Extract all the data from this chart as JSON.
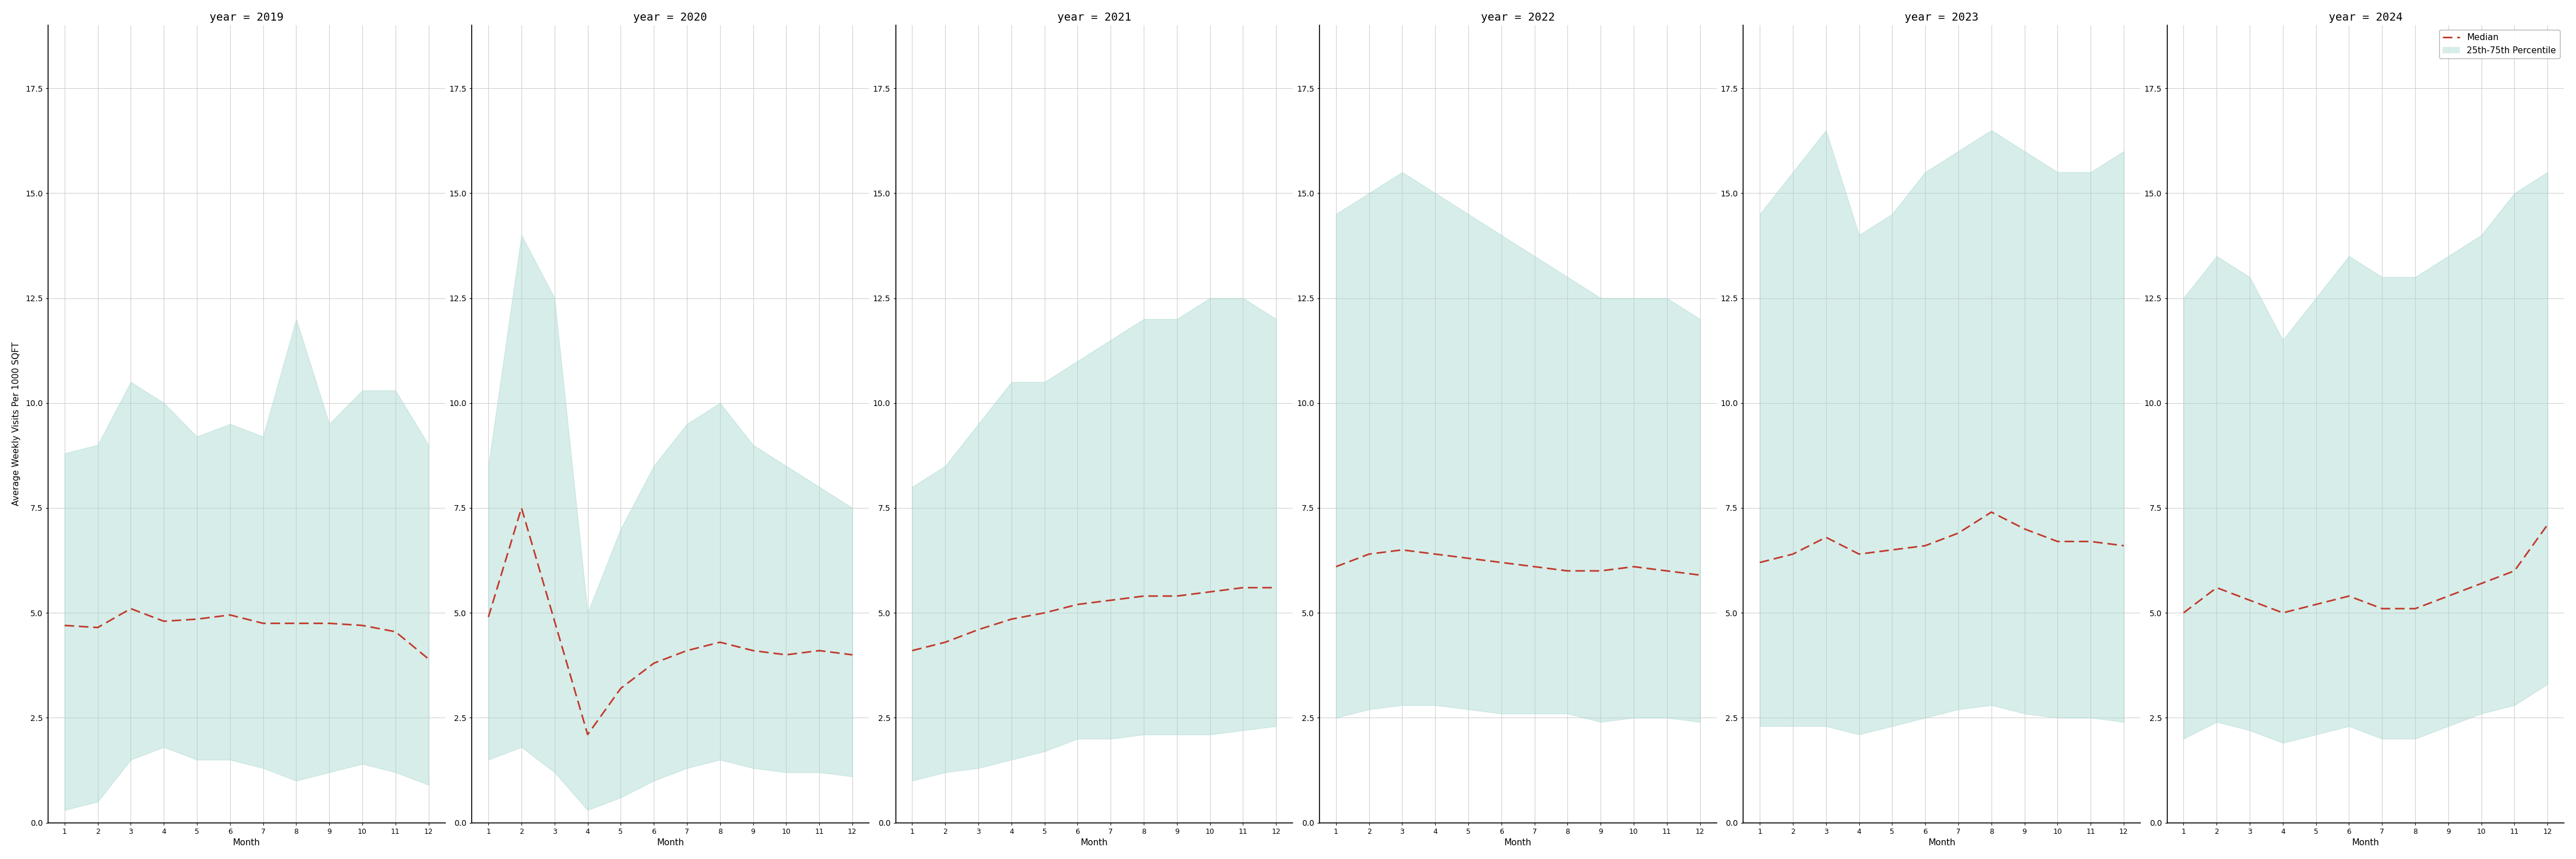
{
  "years": [
    2019,
    2020,
    2021,
    2022,
    2023,
    2024
  ],
  "months": [
    1,
    2,
    3,
    4,
    5,
    6,
    7,
    8,
    9,
    10,
    11,
    12
  ],
  "median": {
    "2019": [
      4.7,
      4.65,
      5.1,
      4.8,
      4.85,
      4.95,
      4.75,
      4.75,
      4.75,
      4.7,
      4.55,
      3.9
    ],
    "2020": [
      4.9,
      7.5,
      4.8,
      2.1,
      3.2,
      3.8,
      4.1,
      4.3,
      4.1,
      4.0,
      4.1,
      4.0
    ],
    "2021": [
      4.1,
      4.3,
      4.6,
      4.85,
      5.0,
      5.2,
      5.3,
      5.4,
      5.4,
      5.5,
      5.6,
      5.6
    ],
    "2022": [
      6.1,
      6.4,
      6.5,
      6.4,
      6.3,
      6.2,
      6.1,
      6.0,
      6.0,
      6.1,
      6.0,
      5.9
    ],
    "2023": [
      6.2,
      6.4,
      6.8,
      6.4,
      6.5,
      6.6,
      6.9,
      7.4,
      7.0,
      6.7,
      6.7,
      6.6
    ],
    "2024": [
      5.0,
      5.6,
      5.3,
      5.0,
      5.2,
      5.4,
      5.1,
      5.1,
      5.4,
      5.7,
      6.0,
      7.1
    ]
  },
  "p25": {
    "2019": [
      0.3,
      0.5,
      1.5,
      1.8,
      1.5,
      1.5,
      1.3,
      1.0,
      1.2,
      1.4,
      1.2,
      0.9
    ],
    "2020": [
      1.5,
      1.8,
      1.2,
      0.3,
      0.6,
      1.0,
      1.3,
      1.5,
      1.3,
      1.2,
      1.2,
      1.1
    ],
    "2021": [
      1.0,
      1.2,
      1.3,
      1.5,
      1.7,
      2.0,
      2.0,
      2.1,
      2.1,
      2.1,
      2.2,
      2.3
    ],
    "2022": [
      2.5,
      2.7,
      2.8,
      2.8,
      2.7,
      2.6,
      2.6,
      2.6,
      2.4,
      2.5,
      2.5,
      2.4
    ],
    "2023": [
      2.3,
      2.3,
      2.3,
      2.1,
      2.3,
      2.5,
      2.7,
      2.8,
      2.6,
      2.5,
      2.5,
      2.4
    ],
    "2024": [
      2.0,
      2.4,
      2.2,
      1.9,
      2.1,
      2.3,
      2.0,
      2.0,
      2.3,
      2.6,
      2.8,
      3.3
    ]
  },
  "p75": {
    "2019": [
      8.8,
      9.0,
      10.5,
      10.0,
      9.2,
      9.5,
      9.2,
      12.0,
      9.5,
      10.3,
      10.3,
      9.0
    ],
    "2020": [
      8.5,
      14.0,
      12.5,
      5.0,
      7.0,
      8.5,
      9.5,
      10.0,
      9.0,
      8.5,
      8.0,
      7.5
    ],
    "2021": [
      8.0,
      8.5,
      9.5,
      10.5,
      10.5,
      11.0,
      11.5,
      12.0,
      12.0,
      12.5,
      12.5,
      12.0
    ],
    "2022": [
      14.5,
      15.0,
      15.5,
      15.0,
      14.5,
      14.0,
      13.5,
      13.0,
      12.5,
      12.5,
      12.5,
      12.0
    ],
    "2023": [
      14.5,
      15.5,
      16.5,
      14.0,
      14.5,
      15.5,
      16.0,
      16.5,
      16.0,
      15.5,
      15.5,
      16.0
    ],
    "2024": [
      12.5,
      13.5,
      13.0,
      11.5,
      12.5,
      13.5,
      13.0,
      13.0,
      13.5,
      14.0,
      15.0,
      15.5
    ]
  },
  "fill_color": "#a8d8d0",
  "fill_alpha": 0.45,
  "line_color": "#c0392b",
  "ylabel": "Average Weekly Visits Per 1000 SQFT",
  "xlabel": "Month",
  "ylim": [
    0,
    19
  ],
  "yticks": [
    0.0,
    2.5,
    5.0,
    7.5,
    10.0,
    12.5,
    15.0,
    17.5
  ],
  "bg_color": "#ffffff",
  "grid_color": "#cccccc",
  "legend_labels": [
    "Median",
    "25th-75th Percentile"
  ]
}
